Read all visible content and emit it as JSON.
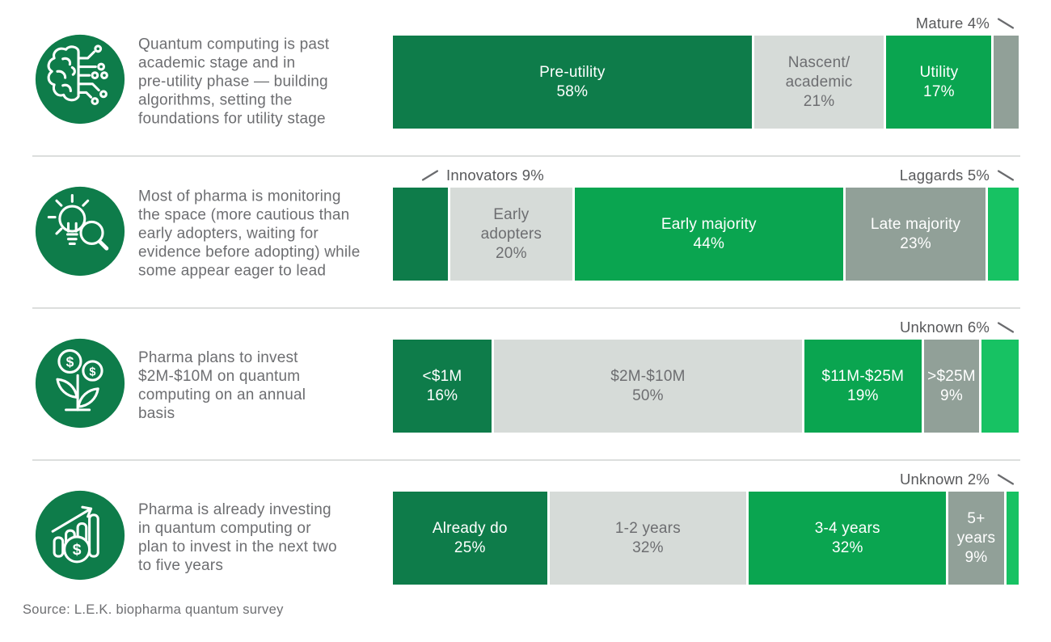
{
  "source": "Source: L.E.K. biopharma quantum survey",
  "colors": {
    "dark_green": "#0E7C4A",
    "green": "#0AA550",
    "bright_green": "#17C263",
    "light_gray": "#D6DBD8",
    "gray": "#91A098",
    "white": "#FFFFFF",
    "body_text": "#6D6E71",
    "callout_text": "#58595B",
    "divider": "#DCDEDD"
  },
  "chart_data": [
    {
      "type": "bar",
      "stacked": true,
      "orientation": "horizontal",
      "units": "%",
      "icon": "brain-circuit-icon",
      "description": "Quantum computing is past\nacademic stage and in\npre-utility phase — building\nalgorithms, setting the\nfoundations for utility stage",
      "categories": [
        "Pre-utility",
        "Nascent/academic",
        "Utility",
        "Mature"
      ],
      "values": [
        58,
        21,
        17,
        4
      ],
      "segments": [
        {
          "category": "Pre-utility",
          "value": 58,
          "fill": "dark_green",
          "inside_label": "Pre-utility\n58%"
        },
        {
          "category": "Nascent/academic",
          "value": 21,
          "fill": "light_gray",
          "inside_label": "Nascent/\nacademic\n21%"
        },
        {
          "category": "Utility",
          "value": 17,
          "fill": "green",
          "inside_label": "Utility\n17%"
        },
        {
          "category": "Mature",
          "value": 4,
          "fill": "gray",
          "inside_label": "",
          "callout": {
            "text": "Mature 4%",
            "side": "right"
          }
        }
      ]
    },
    {
      "type": "bar",
      "stacked": true,
      "orientation": "horizontal",
      "units": "%",
      "icon": "lightbulb-magnifier-icon",
      "description": "Most of pharma is monitoring\nthe space (more cautious than\nearly adopters, waiting for\nevidence before adopting) while\nsome appear eager to lead",
      "categories": [
        "Innovators",
        "Early adopters",
        "Early majority",
        "Late majority",
        "Laggards"
      ],
      "values": [
        9,
        20,
        44,
        23,
        5
      ],
      "segments": [
        {
          "category": "Innovators",
          "value": 9,
          "fill": "dark_green",
          "inside_label": "",
          "callout": {
            "text": "Innovators 9%",
            "side": "left"
          }
        },
        {
          "category": "Early adopters",
          "value": 20,
          "fill": "light_gray",
          "inside_label": "Early\nadopters\n20%"
        },
        {
          "category": "Early majority",
          "value": 44,
          "fill": "green",
          "inside_label": "Early majority\n44%"
        },
        {
          "category": "Late majority",
          "value": 23,
          "fill": "gray",
          "inside_label": "Late majority\n23%"
        },
        {
          "category": "Laggards",
          "value": 5,
          "fill": "bright_green",
          "inside_label": "",
          "callout": {
            "text": "Laggards 5%",
            "side": "right"
          }
        }
      ]
    },
    {
      "type": "bar",
      "stacked": true,
      "orientation": "horizontal",
      "units": "%",
      "icon": "money-plant-icon",
      "description": "Pharma plans to invest\n$2M-$10M on quantum\ncomputing on an annual\nbasis",
      "categories": [
        "<$1M",
        "$2M-$10M",
        "$11M-$25M",
        ">$25M",
        "Unknown"
      ],
      "values": [
        16,
        50,
        19,
        9,
        6
      ],
      "segments": [
        {
          "category": "<$1M",
          "value": 16,
          "fill": "dark_green",
          "inside_label": "<$1M\n16%"
        },
        {
          "category": "$2M-$10M",
          "value": 50,
          "fill": "light_gray",
          "inside_label": "$2M-$10M\n50%"
        },
        {
          "category": "$11M-$25M",
          "value": 19,
          "fill": "green",
          "inside_label": "$11M-$25M\n19%"
        },
        {
          "category": ">$25M",
          "value": 9,
          "fill": "gray",
          "inside_label": ">$25M\n9%"
        },
        {
          "category": "Unknown",
          "value": 6,
          "fill": "bright_green",
          "inside_label": "",
          "callout": {
            "text": "Unknown 6%",
            "side": "right"
          }
        }
      ]
    },
    {
      "type": "bar",
      "stacked": true,
      "orientation": "horizontal",
      "units": "%",
      "icon": "growth-chart-icon",
      "description": "Pharma is already investing\nin quantum computing or\nplan to invest in the next two\nto five years",
      "categories": [
        "Already do",
        "1-2 years",
        "3-4 years",
        "5+ years",
        "Unknown"
      ],
      "values": [
        25,
        32,
        32,
        9,
        2
      ],
      "segments": [
        {
          "category": "Already do",
          "value": 25,
          "fill": "dark_green",
          "inside_label": "Already do\n25%"
        },
        {
          "category": "1-2 years",
          "value": 32,
          "fill": "light_gray",
          "inside_label": "1-2 years\n32%"
        },
        {
          "category": "3-4 years",
          "value": 32,
          "fill": "green",
          "inside_label": "3-4 years\n32%"
        },
        {
          "category": "5+ years",
          "value": 9,
          "fill": "gray",
          "inside_label": "5+\nyears\n9%"
        },
        {
          "category": "Unknown",
          "value": 2,
          "fill": "bright_green",
          "inside_label": "",
          "callout": {
            "text": "Unknown 2%",
            "side": "right"
          }
        }
      ]
    }
  ]
}
